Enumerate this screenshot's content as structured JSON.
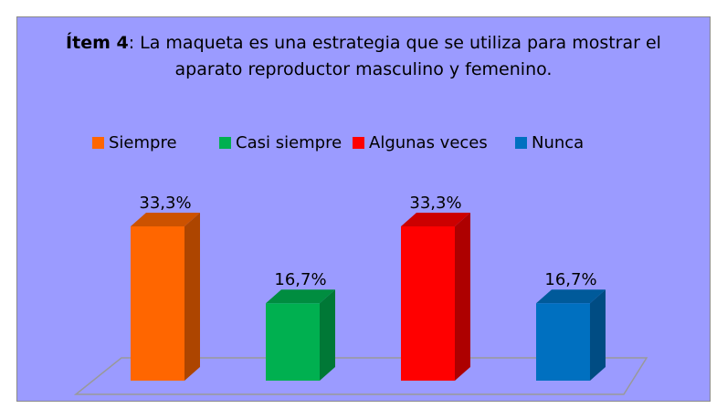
{
  "chart_data": {
    "type": "bar3d",
    "title_label": "Ítem 4",
    "title": ": La maqueta es una estrategia que se utiliza para mostrar el aparato reproductor masculino y femenino.",
    "categories": [
      "Siempre",
      "Casi siempre",
      "Algunas veces",
      "Nunca"
    ],
    "values": [
      33.3,
      16.7,
      33.3,
      16.7
    ],
    "value_labels": [
      "33,3%",
      "16,7%",
      "33,3%",
      "16,7%"
    ],
    "colors": [
      "#ff6600",
      "#00b050",
      "#ff0000",
      "#0070c0"
    ],
    "ylim": [
      0,
      40
    ],
    "legend": "top"
  }
}
